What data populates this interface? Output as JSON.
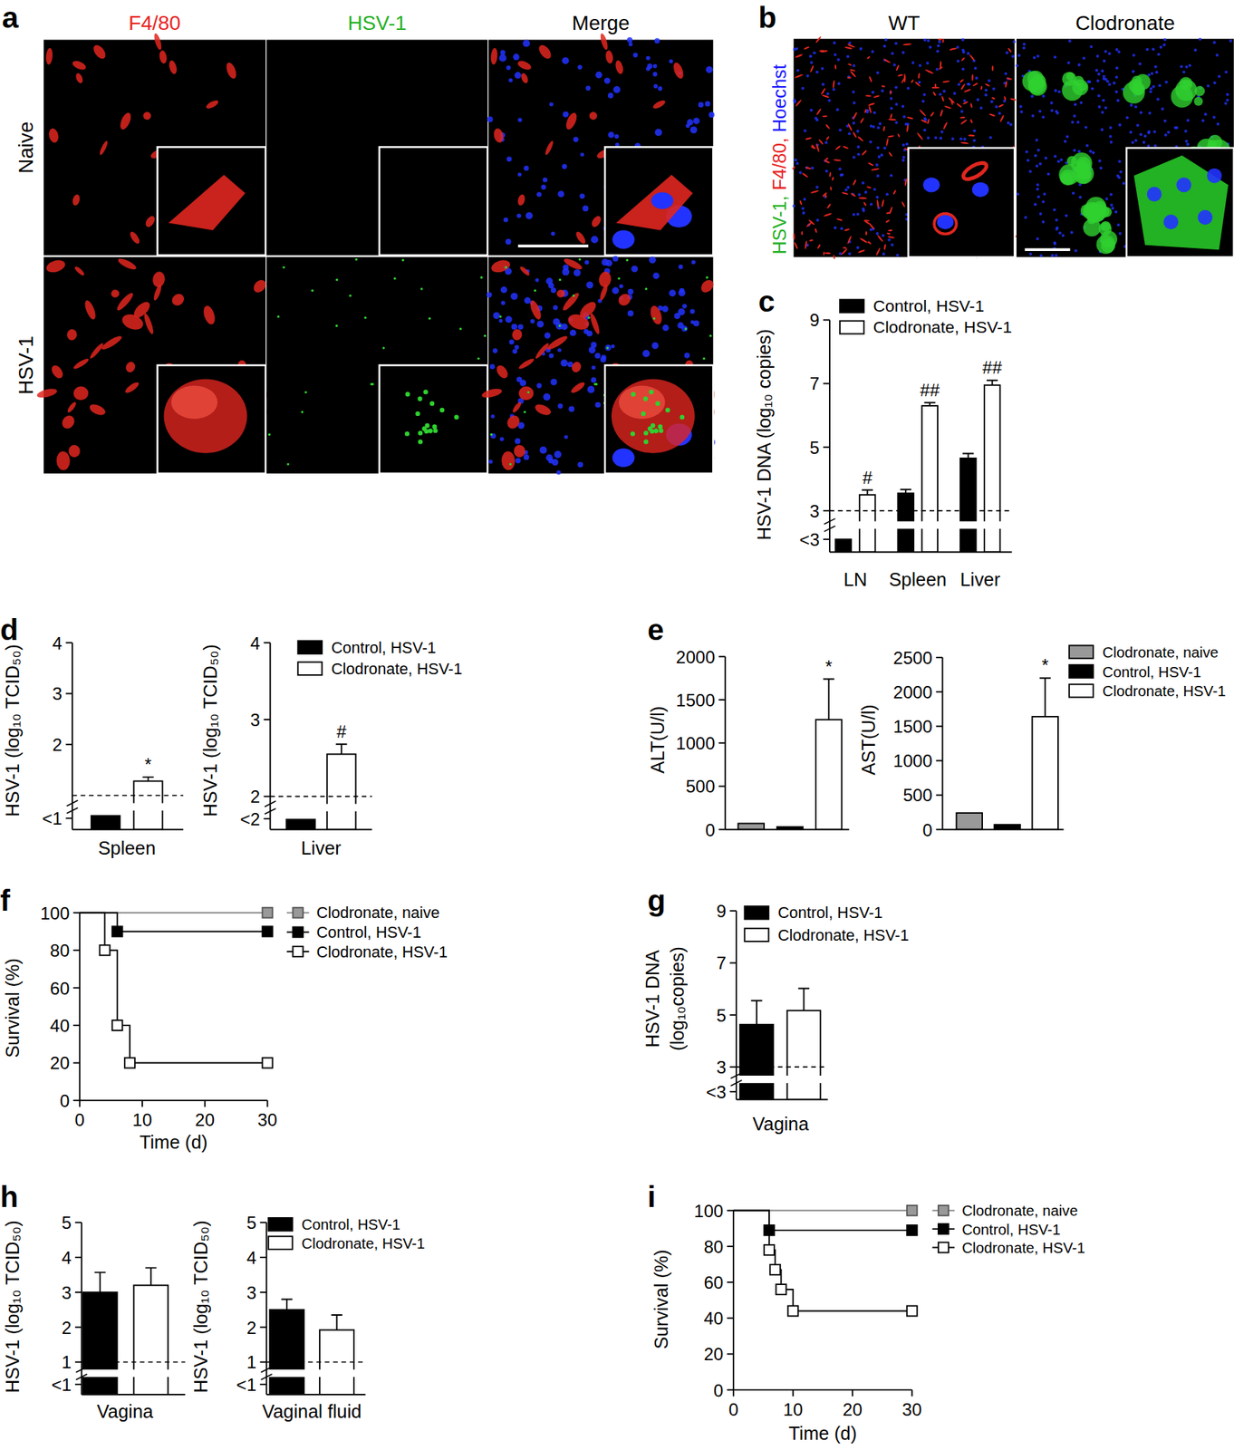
{
  "images": [
    {
      "panel": "a",
      "column_titles": [
        "F4/80",
        "HSV-1",
        "Merge"
      ],
      "column_colors": [
        "#e8231f",
        "#22b022",
        "#000000"
      ],
      "row_titles": [
        "Naive",
        "HSV-1"
      ]
    },
    {
      "panel": "b",
      "column_titles": [
        "WT",
        "Clodronate"
      ],
      "channel_labels": [
        {
          "text": "HSV-1,",
          "color": "#22b022"
        },
        {
          "text": "F4/80,",
          "color": "#e8231f"
        },
        {
          "text": "Hoechst",
          "color": "#1a1aff"
        }
      ]
    }
  ],
  "chart_data": [
    {
      "panel": "c",
      "type": "bar",
      "y_label": "HSV-1 DNA (log₁₀ copies)",
      "categories": [
        "LN",
        "Spleen",
        "Liver"
      ],
      "ylim": [
        1.7,
        9
      ],
      "yticks": [
        {
          "value": 2.1,
          "label": "<3"
        },
        3,
        5,
        7,
        9
      ],
      "detection_limit": 3,
      "series": [
        {
          "name": "Control, HSV-1",
          "color": "#000000",
          "values": [
            2.1,
            3.55,
            4.65
          ],
          "errors": [
            null,
            0.12,
            0.15
          ]
        },
        {
          "name": "Clodronate, HSV-1",
          "color": "#ffffff",
          "values": [
            3.5,
            6.3,
            6.95
          ],
          "errors": [
            0.15,
            0.1,
            0.15
          ],
          "annotations": [
            "#",
            "##",
            "##"
          ]
        }
      ]
    },
    {
      "panel": "d",
      "type": "bar",
      "y_label": "HSV-1 (log₁₀ TCID₅₀)",
      "categories": [
        "Spleen"
      ],
      "ylim": [
        0.33,
        4
      ],
      "yticks": [
        {
          "value": 0.55,
          "label": "<1"
        },
        2,
        3,
        4
      ],
      "detection_limit": 1,
      "series": [
        {
          "color": "#000000",
          "values": [
            0.6
          ]
        },
        {
          "color": "#ffffff",
          "values": [
            1.28
          ],
          "errors": [
            0.08
          ],
          "annotations": [
            "*"
          ]
        }
      ]
    },
    {
      "type": "bar",
      "y_label": "HSV-1 (log₁₀ TCID₅₀)",
      "categories": [
        "Liver"
      ],
      "ylim": [
        1.57,
        4
      ],
      "yticks": [
        {
          "value": 1.71,
          "label": "<2"
        },
        2,
        3,
        4
      ],
      "detection_limit": 2,
      "series": [
        {
          "name": "Control, HSV-1",
          "color": "#000000",
          "values": [
            1.7
          ]
        },
        {
          "name": "Clodronate, HSV-1",
          "color": "#ffffff",
          "values": [
            2.55
          ],
          "errors": [
            0.13
          ],
          "annotations": [
            "#"
          ]
        }
      ]
    },
    {
      "panel": "e",
      "type": "bar",
      "y_label": "ALT(U/l)",
      "categories": [
        null
      ],
      "ylim": [
        0,
        2000
      ],
      "yticks": [
        0,
        500,
        1000,
        1500,
        2000
      ],
      "series": [
        {
          "color": "#999999",
          "values": [
            70
          ]
        },
        {
          "color": "#000000",
          "values": [
            30
          ]
        },
        {
          "color": "#ffffff",
          "values": [
            1270
          ],
          "errors": [
            470
          ],
          "annotations": [
            "*"
          ]
        }
      ]
    },
    {
      "type": "bar",
      "y_label": "AST(U/l)",
      "categories": [
        null
      ],
      "ylim": [
        0,
        2500
      ],
      "yticks": [
        0,
        500,
        1000,
        1500,
        2000,
        2500
      ],
      "series": [
        {
          "name": "Clodronate, naive",
          "color": "#999999",
          "values": [
            240
          ]
        },
        {
          "name": "Control, HSV-1",
          "color": "#000000",
          "values": [
            70
          ]
        },
        {
          "name": "Clodronate, HSV-1",
          "color": "#ffffff",
          "values": [
            1640
          ],
          "errors": [
            560
          ],
          "annotations": [
            "*"
          ]
        }
      ]
    },
    {
      "panel": "f",
      "type": "line",
      "line_style": "step",
      "marker": "square",
      "x_label": "Time (d)",
      "y_label": "Survival (%)",
      "xlim": [
        0,
        30
      ],
      "xticks": [
        0,
        10,
        20,
        30
      ],
      "ylim": [
        0,
        100
      ],
      "yticks": [
        0,
        20,
        40,
        60,
        80,
        100
      ],
      "series": [
        {
          "name": "Clodronate, naive",
          "color": "#999999",
          "x": [
            0,
            30
          ],
          "values": [
            100,
            100
          ]
        },
        {
          "name": "Control, HSV-1",
          "color": "#000000",
          "x": [
            0,
            6,
            30
          ],
          "values": [
            100,
            90,
            90
          ]
        },
        {
          "name": "Clodronate, HSV-1",
          "color": "#ffffff",
          "x": [
            0,
            4,
            6,
            8,
            30
          ],
          "values": [
            100,
            80,
            40,
            20,
            20
          ]
        }
      ]
    },
    {
      "panel": "g",
      "type": "bar",
      "y_label": [
        "HSV-1 DNA",
        "(log₁₀copies)"
      ],
      "categories": [
        "Vagina"
      ],
      "ylim": [
        1.75,
        9
      ],
      "yticks": [
        {
          "value": 2.05,
          "label": "<3"
        },
        3,
        5,
        7,
        9
      ],
      "detection_limit": 3,
      "series": [
        {
          "name": "Control, HSV-1",
          "color": "#000000",
          "values": [
            4.63
          ],
          "errors": [
            0.92
          ]
        },
        {
          "name": "Clodronate, HSV-1",
          "color": "#ffffff",
          "values": [
            5.17
          ],
          "errors": [
            0.85
          ]
        }
      ]
    },
    {
      "panel": "h",
      "type": "bar",
      "y_label": "HSV-1 (log₁₀ TCID₅₀)",
      "categories": [
        "Vagina"
      ],
      "ylim": [
        0.07,
        5
      ],
      "yticks": [
        {
          "value": 0.36,
          "label": "<1"
        },
        1,
        2,
        3,
        4,
        5
      ],
      "detection_limit": 1,
      "series": [
        {
          "color": "#000000",
          "values": [
            3.0
          ],
          "errors": [
            0.57
          ]
        },
        {
          "color": "#ffffff",
          "values": [
            3.2
          ],
          "errors": [
            0.5
          ]
        }
      ]
    },
    {
      "type": "bar",
      "y_label": "HSV-1 (log₁₀ TCID₅₀)",
      "categories": [
        "Vaginal fluid"
      ],
      "ylim": [
        0.07,
        5
      ],
      "yticks": [
        {
          "value": 0.36,
          "label": "<1"
        },
        1,
        2,
        3,
        4,
        5
      ],
      "detection_limit": 1,
      "series": [
        {
          "name": "Control, HSV-1",
          "color": "#000000",
          "values": [
            2.5
          ],
          "errors": [
            0.3
          ]
        },
        {
          "name": "Clodronate, HSV-1",
          "color": "#ffffff",
          "values": [
            1.92
          ],
          "errors": [
            0.43
          ]
        }
      ]
    },
    {
      "panel": "i",
      "type": "line",
      "line_style": "step",
      "marker": "square",
      "x_label": "Time (d)",
      "y_label": "Survival (%)",
      "xlim": [
        0,
        30
      ],
      "xticks": [
        0,
        10,
        20,
        30
      ],
      "ylim": [
        0,
        100
      ],
      "yticks": [
        0,
        20,
        40,
        60,
        80,
        100
      ],
      "series": [
        {
          "name": "Clodronate, naive",
          "color": "#999999",
          "x": [
            0,
            30
          ],
          "values": [
            100,
            100
          ]
        },
        {
          "name": "Control, HSV-1",
          "color": "#000000",
          "x": [
            0,
            6,
            30
          ],
          "values": [
            100,
            89,
            89
          ]
        },
        {
          "name": "Clodronate, HSV-1",
          "color": "#ffffff",
          "x": [
            0,
            6,
            7,
            8,
            10,
            30
          ],
          "values": [
            100,
            78,
            67,
            56,
            44,
            44
          ]
        }
      ]
    }
  ]
}
